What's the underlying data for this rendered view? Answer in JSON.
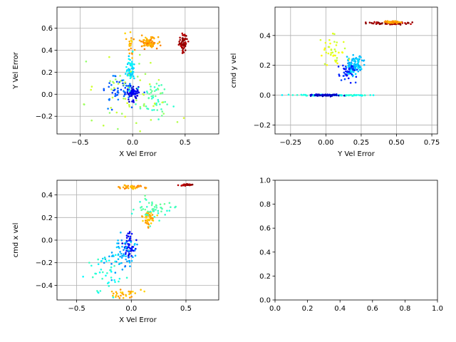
{
  "chart_data": [
    {
      "type": "scatter",
      "xlabel": "X Vel Error",
      "ylabel": "Y Vel Error",
      "xlim": [
        -0.72,
        0.82
      ],
      "ylim": [
        -0.36,
        0.79
      ],
      "xticks": [
        -0.5,
        0.0,
        0.5
      ],
      "xtick_labels": [
        "−0.5",
        "0.0",
        "0.5"
      ],
      "yticks": [
        -0.2,
        0.0,
        0.2,
        0.4,
        0.6
      ],
      "ytick_labels": [
        "−0.2",
        "0.0",
        "0.2",
        "0.4",
        "0.6"
      ],
      "grid": true,
      "colormap": "jet",
      "clusters": [
        {
          "cx": 0.48,
          "cy": 0.47,
          "sx": 0.02,
          "sy": 0.04,
          "n": 60,
          "c": 0.97
        },
        {
          "cx": 0.15,
          "cy": 0.47,
          "sx": 0.04,
          "sy": 0.025,
          "n": 90,
          "c": 0.72
        },
        {
          "cx": -0.02,
          "cy": 0.45,
          "sx": 0.02,
          "sy": 0.05,
          "n": 20,
          "c": 0.7
        },
        {
          "cx": -0.02,
          "cy": 0.22,
          "sx": 0.02,
          "sy": 0.06,
          "n": 60,
          "c": 0.35
        },
        {
          "cx": -0.01,
          "cy": 0.0,
          "sx": 0.03,
          "sy": 0.04,
          "n": 60,
          "c": 0.1
        },
        {
          "cx": -0.15,
          "cy": 0.04,
          "sx": 0.08,
          "sy": 0.06,
          "n": 50,
          "c": 0.22
        },
        {
          "cx": 0.2,
          "cy": -0.05,
          "sx": 0.08,
          "sy": 0.08,
          "n": 50,
          "c": 0.45
        },
        {
          "cx": -0.05,
          "cy": 0.0,
          "sx": 0.2,
          "sy": 0.15,
          "n": 60,
          "c": 0.55
        }
      ]
    },
    {
      "type": "scatter",
      "xlabel": "Y Vel Error",
      "ylabel": "cmd y vel",
      "xlim": [
        -0.36,
        0.79
      ],
      "ylim": [
        -0.26,
        0.59
      ],
      "xticks": [
        -0.25,
        0.0,
        0.25,
        0.5,
        0.75
      ],
      "xtick_labels": [
        "−0.25",
        "0.00",
        "0.25",
        "0.50",
        "0.75"
      ],
      "yticks": [
        -0.2,
        0.0,
        0.2,
        0.4
      ],
      "ytick_labels": [
        "−0.2",
        "0.0",
        "0.2",
        "0.4"
      ],
      "grid": true,
      "colormap": "jet",
      "clusters": [
        {
          "cx": 0.45,
          "cy": 0.48,
          "sx": 0.08,
          "sy": 0.004,
          "n": 60,
          "c": 0.97
        },
        {
          "cx": 0.47,
          "cy": 0.49,
          "sx": 0.03,
          "sy": 0.004,
          "n": 40,
          "c": 0.72
        },
        {
          "cx": 0.2,
          "cy": 0.2,
          "sx": 0.03,
          "sy": 0.03,
          "n": 120,
          "c": 0.32
        },
        {
          "cx": 0.15,
          "cy": 0.15,
          "sx": 0.03,
          "sy": 0.03,
          "n": 40,
          "c": 0.15
        },
        {
          "cx": 0.05,
          "cy": 0.0,
          "sx": 0.12,
          "sy": 0.002,
          "n": 120,
          "c": 0.4
        },
        {
          "cx": 0.0,
          "cy": 0.0,
          "sx": 0.05,
          "sy": 0.003,
          "n": 60,
          "c": 0.08
        },
        {
          "cx": 0.05,
          "cy": 0.3,
          "sx": 0.05,
          "sy": 0.06,
          "n": 40,
          "c": 0.6
        }
      ]
    },
    {
      "type": "scatter",
      "xlabel": "X Vel Error",
      "ylabel": "cmd x vel",
      "xlim": [
        -0.68,
        0.8
      ],
      "ylim": [
        -0.53,
        0.53
      ],
      "xticks": [
        -0.5,
        0.0,
        0.5
      ],
      "xtick_labels": [
        "−0.5",
        "0.0",
        "0.5"
      ],
      "yticks": [
        -0.4,
        -0.2,
        0.0,
        0.2,
        0.4
      ],
      "ytick_labels": [
        "−0.4",
        "−0.2",
        "0.0",
        "0.2",
        "0.4"
      ],
      "grid": true,
      "colormap": "jet",
      "clusters": [
        {
          "cx": 0.5,
          "cy": 0.49,
          "sx": 0.03,
          "sy": 0.004,
          "n": 30,
          "c": 0.97
        },
        {
          "cx": 0.0,
          "cy": 0.47,
          "sx": 0.05,
          "sy": 0.01,
          "n": 40,
          "c": 0.72
        },
        {
          "cx": 0.15,
          "cy": 0.19,
          "sx": 0.03,
          "sy": 0.03,
          "n": 50,
          "c": 0.7
        },
        {
          "cx": 0.2,
          "cy": 0.28,
          "sx": 0.08,
          "sy": 0.05,
          "n": 50,
          "c": 0.45
        },
        {
          "cx": -0.02,
          "cy": -0.05,
          "sx": 0.03,
          "sy": 0.06,
          "n": 60,
          "c": 0.12
        },
        {
          "cx": -0.1,
          "cy": -0.15,
          "sx": 0.08,
          "sy": 0.08,
          "n": 60,
          "c": 0.3
        },
        {
          "cx": -0.25,
          "cy": -0.3,
          "sx": 0.08,
          "sy": 0.08,
          "n": 40,
          "c": 0.4
        },
        {
          "cx": -0.05,
          "cy": -0.47,
          "sx": 0.1,
          "sy": 0.02,
          "n": 30,
          "c": 0.7
        }
      ]
    },
    {
      "type": "scatter",
      "xlabel": "",
      "ylabel": "",
      "xlim": [
        0.0,
        1.0
      ],
      "ylim": [
        0.0,
        1.0
      ],
      "xticks": [
        0.0,
        0.2,
        0.4,
        0.6,
        0.8,
        1.0
      ],
      "xtick_labels": [
        "0.0",
        "0.2",
        "0.4",
        "0.6",
        "0.8",
        "1.0"
      ],
      "yticks": [
        0.0,
        0.2,
        0.4,
        0.6,
        0.8,
        1.0
      ],
      "ytick_labels": [
        "0.0",
        "0.2",
        "0.4",
        "0.6",
        "0.8",
        "1.0"
      ],
      "grid": false,
      "clusters": []
    }
  ]
}
